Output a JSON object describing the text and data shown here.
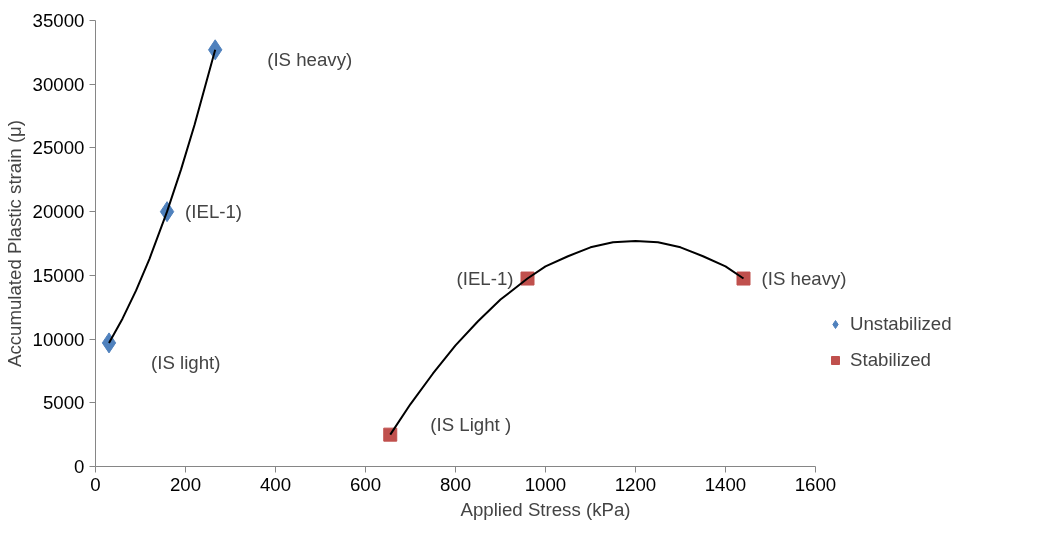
{
  "chart_data": {
    "type": "scatter",
    "xlabel": "Applied Stress (kPa)",
    "ylabel": "Accumulated Plastic strain (μ)",
    "series": [
      {
        "name": "Unstabilized",
        "color": "#4f81bd",
        "marker": "diamond",
        "x": [
          30,
          159,
          266
        ],
        "values": [
          9700,
          20000,
          32700
        ]
      },
      {
        "name": "Stabilized",
        "color": "#c0504d",
        "marker": "square",
        "x": [
          655,
          960,
          1440
        ],
        "values": [
          2500,
          14750,
          14750
        ]
      },
      {
        "type": "line",
        "color": "#000000",
        "marker": "none",
        "x": [
          30,
          60,
          90,
          120,
          159,
          190,
          220,
          266
        ],
        "values": [
          9700,
          11600,
          13800,
          16300,
          20000,
          23300,
          26800,
          32700
        ]
      },
      {
        "type": "line",
        "color": "#000000",
        "marker": "none",
        "x": [
          655,
          700,
          750,
          800,
          850,
          900,
          960,
          1000,
          1050,
          1100,
          1150,
          1200,
          1250,
          1300,
          1350,
          1400,
          1440
        ],
        "values": [
          2500,
          4900,
          7300,
          9500,
          11400,
          13100,
          14750,
          15700,
          16500,
          17200,
          17600,
          17700,
          17600,
          17200,
          16500,
          15700,
          14750
        ]
      }
    ],
    "annotations": [
      {
        "text": "(IS light)",
        "x": 30,
        "y": 9700
      },
      {
        "text": "(IEL-1)",
        "x": 159,
        "y": 20000
      },
      {
        "text": "(IS heavy)",
        "x": 266,
        "y": 32700
      },
      {
        "text": "(IS Light )",
        "x": 655,
        "y": 2500
      },
      {
        "text": "(IEL-1)",
        "x": 960,
        "y": 14750
      },
      {
        "text": "(IS heavy)",
        "x": 1440,
        "y": 14750
      }
    ],
    "xlim": [
      0,
      1600
    ],
    "xticks": [
      0,
      200,
      400,
      600,
      800,
      1000,
      1200,
      1400,
      1600
    ],
    "ylim": [
      0,
      35000
    ],
    "yticks": [
      0,
      5000,
      10000,
      15000,
      20000,
      25000,
      30000,
      35000
    ],
    "grid": false,
    "legend": "right",
    "line_style": "solid"
  }
}
